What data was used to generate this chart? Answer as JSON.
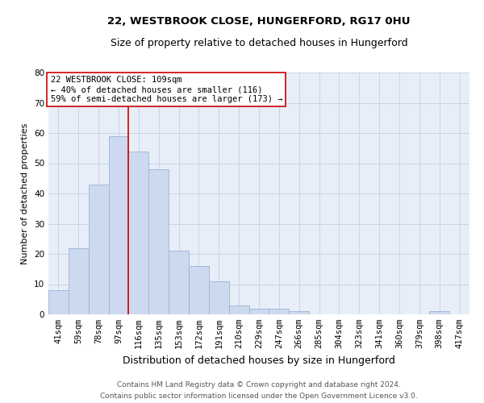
{
  "title": "22, WESTBROOK CLOSE, HUNGERFORD, RG17 0HU",
  "subtitle": "Size of property relative to detached houses in Hungerford",
  "xlabel": "Distribution of detached houses by size in Hungerford",
  "ylabel": "Number of detached properties",
  "footnote1": "Contains HM Land Registry data © Crown copyright and database right 2024.",
  "footnote2": "Contains public sector information licensed under the Open Government Licence v3.0.",
  "annotation_line1": "22 WESTBROOK CLOSE: 109sqm",
  "annotation_line2": "← 40% of detached houses are smaller (116)",
  "annotation_line3": "59% of semi-detached houses are larger (173) →",
  "bar_values": [
    8,
    22,
    43,
    59,
    54,
    48,
    21,
    16,
    11,
    3,
    2,
    2,
    1,
    0,
    0,
    0,
    0,
    0,
    0,
    1,
    0
  ],
  "bar_labels": [
    "41sqm",
    "59sqm",
    "78sqm",
    "97sqm",
    "116sqm",
    "135sqm",
    "153sqm",
    "172sqm",
    "191sqm",
    "210sqm",
    "229sqm",
    "247sqm",
    "266sqm",
    "285sqm",
    "304sqm",
    "323sqm",
    "341sqm",
    "360sqm",
    "379sqm",
    "398sqm",
    "417sqm"
  ],
  "bar_color": "#cdd9ee",
  "bar_edge_color": "#9ab4d8",
  "red_line_index": 3.5,
  "red_line_color": "#cc0000",
  "ylim": [
    0,
    80
  ],
  "yticks": [
    0,
    10,
    20,
    30,
    40,
    50,
    60,
    70,
    80
  ],
  "grid_color": "#c8d4e8",
  "background_color": "#e8eef8",
  "annotation_box_facecolor": "#ffffff",
  "annotation_box_edgecolor": "#cc0000",
  "title_fontsize": 9.5,
  "subtitle_fontsize": 9,
  "xlabel_fontsize": 9,
  "ylabel_fontsize": 8,
  "tick_fontsize": 7.5,
  "annotation_fontsize": 7.5,
  "footnote_fontsize": 6.5
}
